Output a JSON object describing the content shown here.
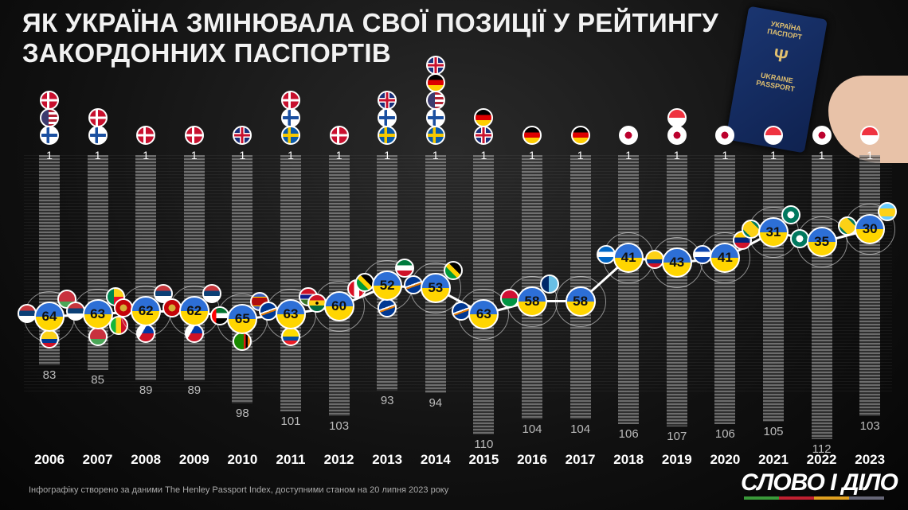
{
  "title": "ЯК УКРАЇНА ЗМІНЮВАЛА СВОЇ ПОЗИЦІЇ У РЕЙТИНГУ ЗАКОРДОННИХ ПАСПОРТІВ",
  "passport": {
    "line1": "УКРАЇНА",
    "line2": "ПАСПОРТ",
    "line3": "UKRAINE",
    "line4": "PASSPORT"
  },
  "footer": "Інфографіку створено за даними The Henley Passport Index, доступними станом на 20 липня 2023 року",
  "logo": "СЛОВО І ДІЛО",
  "colors": {
    "ukraine_blue": "#2d6fd6",
    "ukraine_yellow": "#ffd500",
    "background": "#111111"
  },
  "chart_data": {
    "type": "line",
    "title": "ЯК УКРАЇНА ЗМІНЮВАЛА СВОЇ ПОЗИЦІЇ У РЕЙТИНГУ ЗАКОРДОННИХ ПАСПОРТІВ",
    "y_inverted": true,
    "categories": [
      "2006",
      "2007",
      "2008",
      "2009",
      "2010",
      "2011",
      "2012",
      "2013",
      "2014",
      "2015",
      "2016",
      "2017",
      "2018",
      "2019",
      "2020",
      "2021",
      "2022",
      "2023"
    ],
    "top_rank": [
      "1",
      "1",
      "1",
      "1",
      "1",
      "1",
      "1",
      "1",
      "1",
      "1",
      "1",
      "1",
      "1",
      "1",
      "1",
      "1",
      "1",
      "1"
    ],
    "total_positions": [
      83,
      85,
      89,
      89,
      98,
      101,
      103,
      93,
      94,
      110,
      104,
      104,
      106,
      107,
      106,
      105,
      112,
      103
    ],
    "ukraine_rank": [
      64,
      63,
      62,
      62,
      65,
      63,
      60,
      52,
      53,
      63,
      58,
      58,
      41,
      43,
      41,
      31,
      35,
      30
    ],
    "top_countries": [
      [
        "denmark",
        "usa",
        "finland"
      ],
      [
        "denmark",
        "finland"
      ],
      [
        "denmark"
      ],
      [
        "denmark"
      ],
      [
        "uk"
      ],
      [
        "denmark",
        "finland",
        "sweden"
      ],
      [
        "denmark"
      ],
      [
        "uk",
        "finland",
        "sweden"
      ],
      [
        "uk",
        "germany",
        "usa",
        "finland",
        "sweden"
      ],
      [
        "germany",
        "uk"
      ],
      [
        "germany"
      ],
      [
        "germany"
      ],
      [
        "japan"
      ],
      [
        "singapore",
        "japan"
      ],
      [
        "japan"
      ],
      [
        "singapore"
      ],
      [
        "japan"
      ],
      [
        "singapore"
      ]
    ],
    "neighbors": [
      [
        "serbia",
        "belarus",
        "colombia"
      ],
      [
        "serbia",
        "benin",
        "belarus",
        "mali"
      ],
      [
        "montenegro",
        "serbia",
        "philippines"
      ],
      [
        "montenegro",
        "serbia",
        "philippines"
      ],
      [
        "uae",
        "eswatini",
        "zambia"
      ],
      [
        "marshall-islands",
        "gambia",
        "ecuador"
      ],
      [
        "ghana",
        "peru"
      ],
      [
        "jamaica",
        "kuwait",
        "marshall-islands"
      ],
      [
        "marshall-islands",
        "jamaica"
      ],
      [
        "marshall-islands"
      ],
      [
        "vanuatu",
        "fiji"
      ],
      [],
      [
        "nicaragua"
      ],
      [
        "colombia"
      ],
      [
        "el-salvador",
        "venezuela"
      ],
      [
        "grenada",
        "macao"
      ],
      [
        "macao"
      ],
      [
        "grenada",
        "saint-lucia"
      ]
    ]
  }
}
